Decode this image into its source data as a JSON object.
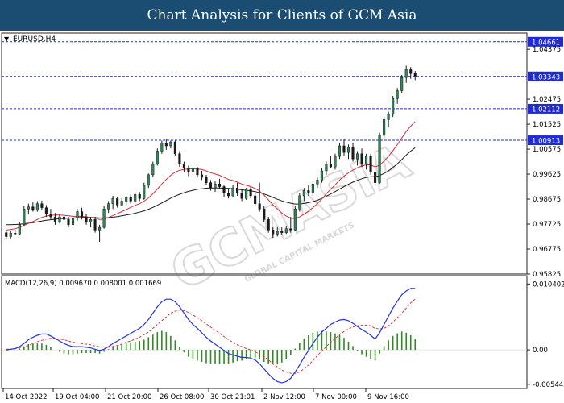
{
  "banner": {
    "title": "Chart Analysis for Clients of GCM Asia"
  },
  "watermark": {
    "brand": "GCMASIA",
    "sub": "GLOBAL CAPITAL MARKETS"
  },
  "chart_data": [
    {
      "type": "candlestick",
      "instrument_label": "EURUSD,H4",
      "ylim": [
        0.95825,
        1.049
      ],
      "y_ticks": [
        "1.04375",
        "1.02475",
        "1.01525",
        "1.00575",
        "0.99625",
        "0.98675",
        "0.97725",
        "0.96775",
        "0.95825"
      ],
      "x_ticks": [
        "14 Oct 2022",
        "19 Oct 04:00",
        "21 Oct 20:00",
        "26 Oct 08:00",
        "30 Oct 21:01",
        "2 Nov 12:00",
        "7 Nov 00:00",
        "9 Nov 16:00"
      ],
      "levels": [
        "1.04661",
        "1.03343",
        "1.02112",
        "1.00913"
      ],
      "colors": {
        "bull": "#2e8b57",
        "bear": "#1a1a1a",
        "ma_fast": "#d0303a",
        "ma_slow": "#1a1a1a",
        "level": "#1f2bd6",
        "level_box": "#1f2bd6"
      },
      "candles": [
        [
          0.974,
          0.9745,
          0.9715,
          0.9725
        ],
        [
          0.9725,
          0.9748,
          0.9718,
          0.9738
        ],
        [
          0.9738,
          0.9752,
          0.973,
          0.9735
        ],
        [
          0.9735,
          0.978,
          0.973,
          0.977
        ],
        [
          0.977,
          0.984,
          0.9765,
          0.983
        ],
        [
          0.983,
          0.985,
          0.981,
          0.9838
        ],
        [
          0.9838,
          0.9855,
          0.982,
          0.9825
        ],
        [
          0.9825,
          0.986,
          0.982,
          0.985
        ],
        [
          0.985,
          0.9862,
          0.9825,
          0.9835
        ],
        [
          0.9835,
          0.9845,
          0.98,
          0.981
        ],
        [
          0.981,
          0.983,
          0.979,
          0.98
        ],
        [
          0.98,
          0.9815,
          0.977,
          0.978
        ],
        [
          0.978,
          0.981,
          0.9775,
          0.98
        ],
        [
          0.98,
          0.982,
          0.978,
          0.979
        ],
        [
          0.979,
          0.98,
          0.976,
          0.977
        ],
        [
          0.977,
          0.98,
          0.9765,
          0.9795
        ],
        [
          0.9795,
          0.983,
          0.9785,
          0.982
        ],
        [
          0.982,
          0.9835,
          0.979,
          0.98
        ],
        [
          0.98,
          0.981,
          0.977,
          0.978
        ],
        [
          0.978,
          0.98,
          0.976,
          0.979
        ],
        [
          0.979,
          0.98,
          0.974,
          0.975
        ],
        [
          0.975,
          0.977,
          0.9705,
          0.976
        ],
        [
          0.976,
          0.984,
          0.9755,
          0.983
        ],
        [
          0.983,
          0.986,
          0.9815,
          0.985
        ],
        [
          0.985,
          0.988,
          0.983,
          0.987
        ],
        [
          0.987,
          0.9875,
          0.9835,
          0.9845
        ],
        [
          0.9845,
          0.987,
          0.984,
          0.986
        ],
        [
          0.986,
          0.988,
          0.9845,
          0.9875
        ],
        [
          0.9875,
          0.9885,
          0.985,
          0.986
        ],
        [
          0.986,
          0.989,
          0.9855,
          0.9885
        ],
        [
          0.9885,
          0.9895,
          0.986,
          0.987
        ],
        [
          0.987,
          0.993,
          0.9865,
          0.992
        ],
        [
          0.992,
          0.9965,
          0.991,
          0.996
        ],
        [
          0.996,
          1.001,
          0.995,
          1.0
        ],
        [
          1.0,
          1.006,
          0.9995,
          1.005
        ],
        [
          1.005,
          1.009,
          1.004,
          1.008
        ],
        [
          1.008,
          1.0095,
          1.0055,
          1.007
        ],
        [
          1.007,
          1.009,
          1.006,
          1.0085
        ],
        [
          1.0085,
          1.009,
          1.003,
          1.004
        ],
        [
          1.004,
          1.005,
          0.999,
          1.0
        ],
        [
          1.0,
          1.001,
          0.997,
          0.9985
        ],
        [
          0.9985,
          0.9995,
          0.9955,
          0.997
        ],
        [
          0.997,
          0.9995,
          0.9955,
          0.9985
        ],
        [
          0.9985,
          0.999,
          0.995,
          0.996
        ],
        [
          0.996,
          0.9975,
          0.994,
          0.995
        ],
        [
          0.995,
          0.996,
          0.992,
          0.993
        ],
        [
          0.993,
          0.994,
          0.99,
          0.991
        ],
        [
          0.991,
          0.9935,
          0.9895,
          0.9925
        ],
        [
          0.9925,
          0.9945,
          0.9905,
          0.9915
        ],
        [
          0.9915,
          0.992,
          0.9875,
          0.989
        ],
        [
          0.989,
          0.9905,
          0.987,
          0.988
        ],
        [
          0.988,
          0.992,
          0.9875,
          0.991
        ],
        [
          0.991,
          0.993,
          0.988,
          0.989
        ],
        [
          0.989,
          0.9905,
          0.986,
          0.987
        ],
        [
          0.987,
          0.991,
          0.9865,
          0.9905
        ],
        [
          0.9905,
          0.9915,
          0.987,
          0.988
        ],
        [
          0.988,
          0.989,
          0.984,
          0.985
        ],
        [
          0.985,
          0.993,
          0.982,
          0.983
        ],
        [
          0.983,
          0.984,
          0.978,
          0.979
        ],
        [
          0.979,
          0.98,
          0.974,
          0.975
        ],
        [
          0.975,
          0.976,
          0.972,
          0.9735
        ],
        [
          0.9735,
          0.976,
          0.9725,
          0.9745
        ],
        [
          0.9745,
          0.976,
          0.973,
          0.974
        ],
        [
          0.974,
          0.9765,
          0.9735,
          0.9755
        ],
        [
          0.9755,
          0.98,
          0.974,
          0.975
        ],
        [
          0.975,
          0.984,
          0.9745,
          0.983
        ],
        [
          0.983,
          0.989,
          0.982,
          0.988
        ],
        [
          0.988,
          0.991,
          0.986,
          0.99
        ],
        [
          0.99,
          0.992,
          0.988,
          0.989
        ],
        [
          0.989,
          0.9935,
          0.988,
          0.9925
        ],
        [
          0.9925,
          0.995,
          0.991,
          0.994
        ],
        [
          0.994,
          0.9985,
          0.993,
          0.9975
        ],
        [
          0.9975,
          1.001,
          0.996,
          1.0
        ],
        [
          1.0,
          1.003,
          0.9985,
          0.999
        ],
        [
          0.999,
          1.004,
          0.998,
          1.003
        ],
        [
          1.003,
          1.008,
          1.002,
          1.007
        ],
        [
          1.007,
          1.0095,
          1.003,
          1.0045
        ],
        [
          1.0045,
          1.0075,
          1.002,
          1.0065
        ],
        [
          1.0065,
          1.008,
          1.001,
          1.002
        ],
        [
          1.002,
          1.005,
          0.9995,
          1.004
        ],
        [
          1.004,
          1.006,
          0.999,
          1.0
        ],
        [
          1.0,
          1.004,
          0.998,
          1.003
        ],
        [
          1.003,
          1.004,
          0.996,
          0.997
        ],
        [
          0.997,
          0.9985,
          0.992,
          0.993
        ],
        [
          0.993,
          1.012,
          0.9925,
          1.011
        ],
        [
          1.011,
          1.018,
          1.0095,
          1.017
        ],
        [
          1.017,
          1.02,
          1.014,
          1.019
        ],
        [
          1.019,
          1.026,
          1.018,
          1.025
        ],
        [
          1.025,
          1.029,
          1.023,
          1.028
        ],
        [
          1.028,
          1.034,
          1.027,
          1.033
        ],
        [
          1.033,
          1.0375,
          1.031,
          1.036
        ],
        [
          1.036,
          1.037,
          1.0325,
          1.0345
        ],
        [
          1.0345,
          1.0355,
          1.032,
          1.0334
        ]
      ],
      "ma_fast": [
        0.975,
        0.9752,
        0.9755,
        0.976,
        0.9768,
        0.9775,
        0.9782,
        0.979,
        0.9798,
        0.9803,
        0.9806,
        0.9807,
        0.9807,
        0.9806,
        0.9804,
        0.9802,
        0.9802,
        0.9802,
        0.98,
        0.9798,
        0.9795,
        0.979,
        0.9792,
        0.9798,
        0.9805,
        0.9812,
        0.982,
        0.9828,
        0.9836,
        0.9844,
        0.985,
        0.986,
        0.9872,
        0.9888,
        0.9906,
        0.9925,
        0.9942,
        0.9958,
        0.997,
        0.9977,
        0.998,
        0.9982,
        0.9983,
        0.9982,
        0.998,
        0.9975,
        0.9968,
        0.9963,
        0.9958,
        0.995,
        0.9942,
        0.9938,
        0.9932,
        0.9925,
        0.992,
        0.9915,
        0.9908,
        0.9898,
        0.9883,
        0.9865,
        0.9846,
        0.983,
        0.9815,
        0.9803,
        0.9795,
        0.9793,
        0.98,
        0.981,
        0.9822,
        0.9835,
        0.985,
        0.9868,
        0.9888,
        0.9905,
        0.9922,
        0.994,
        0.9955,
        0.9968,
        0.9978,
        0.9987,
        0.9993,
        0.9998,
        0.9998,
        0.999,
        0.9996,
        1.0012,
        1.003,
        1.0052,
        1.0075,
        1.01,
        1.0125,
        1.0145,
        1.0162
      ],
      "ma_slow": [
        0.977,
        0.977,
        0.9771,
        0.9772,
        0.9774,
        0.9776,
        0.9778,
        0.9781,
        0.9784,
        0.9787,
        0.9789,
        0.9791,
        0.9793,
        0.9794,
        0.9795,
        0.9796,
        0.9797,
        0.9798,
        0.9798,
        0.9798,
        0.9797,
        0.9796,
        0.9796,
        0.9797,
        0.9799,
        0.9801,
        0.9804,
        0.9807,
        0.981,
        0.9814,
        0.9818,
        0.9823,
        0.9829,
        0.9836,
        0.9844,
        0.9853,
        0.9862,
        0.9871,
        0.9879,
        0.9886,
        0.9892,
        0.9897,
        0.9901,
        0.9905,
        0.9907,
        0.9909,
        0.991,
        0.991,
        0.991,
        0.9909,
        0.9908,
        0.9907,
        0.9905,
        0.9903,
        0.9901,
        0.9899,
        0.9896,
        0.9892,
        0.9887,
        0.9881,
        0.9874,
        0.9867,
        0.9861,
        0.9856,
        0.9852,
        0.9849,
        0.9849,
        0.9851,
        0.9854,
        0.9858,
        0.9863,
        0.987,
        0.9878,
        0.9887,
        0.9896,
        0.9906,
        0.9915,
        0.9924,
        0.9932,
        0.9939,
        0.9945,
        0.995,
        0.9953,
        0.9953,
        0.9957,
        0.9965,
        0.9975,
        0.9988,
        1.0002,
        1.0018,
        1.0035,
        1.005,
        1.0063
      ]
    },
    {
      "type": "macd",
      "label": "MACD(12,26,9) 0.009670 0.008001 0.001669",
      "ylim": [
        -0.0061,
        0.0107
      ],
      "y_ticks": [
        "0.010402",
        "0.00",
        "-0.005442"
      ],
      "colors": {
        "histogram": "#2e8b22",
        "macd_line": "#2233dd",
        "signal_line": "#e03030"
      },
      "macd": [
        0.0,
        0.0001,
        0.0002,
        0.0005,
        0.001,
        0.0016,
        0.002,
        0.0023,
        0.0025,
        0.0025,
        0.0022,
        0.0018,
        0.0014,
        0.001,
        0.0007,
        0.0005,
        0.0005,
        0.0005,
        0.0004,
        0.0003,
        0.0001,
        -0.0001,
        0.0001,
        0.0005,
        0.001,
        0.0014,
        0.0018,
        0.0022,
        0.0026,
        0.003,
        0.0034,
        0.004,
        0.0048,
        0.0058,
        0.0068,
        0.0076,
        0.008,
        0.008,
        0.0076,
        0.0068,
        0.0058,
        0.0048,
        0.004,
        0.0034,
        0.0027,
        0.002,
        0.0014,
        0.0009,
        0.0004,
        -0.0001,
        -0.0006,
        -0.0008,
        -0.001,
        -0.0012,
        -0.0012,
        -0.0013,
        -0.0016,
        -0.0022,
        -0.003,
        -0.0038,
        -0.0045,
        -0.005,
        -0.0052,
        -0.005,
        -0.0045,
        -0.0035,
        -0.0024,
        -0.0012,
        -0.0001,
        0.001,
        0.002,
        0.0028,
        0.0034,
        0.004,
        0.0044,
        0.0047,
        0.0048,
        0.0046,
        0.0042,
        0.0037,
        0.0032,
        0.0028,
        0.0023,
        0.0017,
        0.0027,
        0.004,
        0.0053,
        0.0066,
        0.0077,
        0.0087,
        0.0093,
        0.0097,
        0.0097
      ],
      "signal": [
        0.0001,
        0.0001,
        0.0002,
        0.0003,
        0.0005,
        0.0007,
        0.001,
        0.0013,
        0.0015,
        0.0017,
        0.0018,
        0.0018,
        0.0017,
        0.0016,
        0.0014,
        0.0012,
        0.0011,
        0.001,
        0.0009,
        0.0008,
        0.0006,
        0.0005,
        0.0004,
        0.0004,
        0.0006,
        0.0007,
        0.0009,
        0.0012,
        0.0014,
        0.0017,
        0.002,
        0.0024,
        0.0028,
        0.0034,
        0.004,
        0.0046,
        0.0052,
        0.0058,
        0.0061,
        0.0063,
        0.0062,
        0.0059,
        0.0055,
        0.0051,
        0.0046,
        0.0041,
        0.0036,
        0.0031,
        0.0026,
        0.0021,
        0.0016,
        0.0012,
        0.0008,
        0.0005,
        0.0002,
        0.0,
        -0.0003,
        -0.0007,
        -0.0011,
        -0.0016,
        -0.0022,
        -0.0027,
        -0.0032,
        -0.0035,
        -0.0037,
        -0.0037,
        -0.0035,
        -0.003,
        -0.0024,
        -0.0017,
        -0.0009,
        -0.0002,
        0.0005,
        0.0012,
        0.0018,
        0.0024,
        0.0029,
        0.0033,
        0.0036,
        0.0038,
        0.0039,
        0.0039,
        0.0038,
        0.0034,
        0.0033,
        0.0034,
        0.0038,
        0.0044,
        0.0051,
        0.0058,
        0.0066,
        0.0074,
        0.008
      ]
    }
  ]
}
